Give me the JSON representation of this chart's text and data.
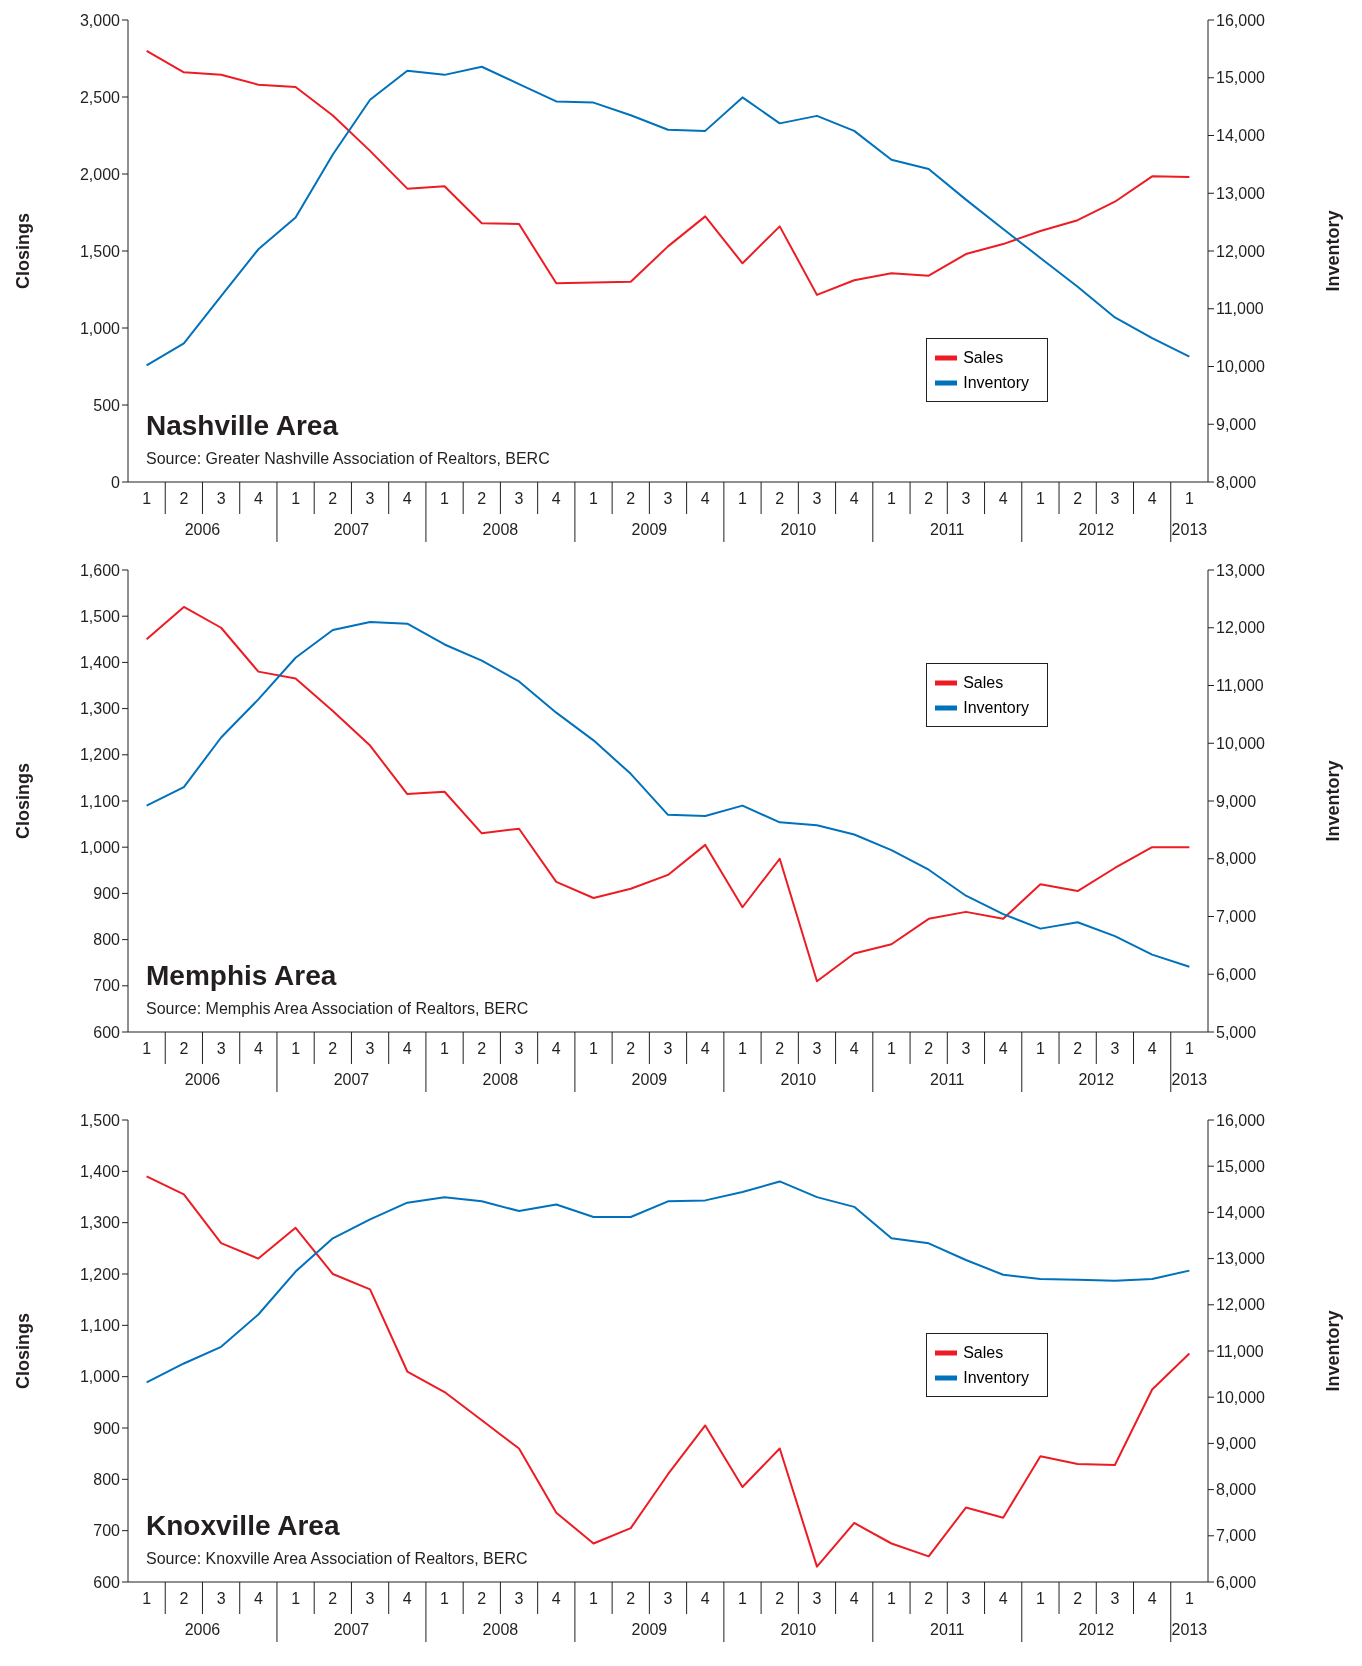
{
  "chart_data": [
    {
      "type": "line",
      "title": "Nashville Area",
      "ylabel": "Closings",
      "y2label": "Inventory",
      "legend": "bottom right",
      "annotations": [
        "Source: Greater Nashville Association of Realtors, BERC",
        "2006",
        "2007",
        "2008",
        "2009",
        "2010",
        "2011",
        "2012",
        "2013"
      ],
      "categories": [
        "1",
        "2",
        "3",
        "4",
        "1",
        "2",
        "3",
        "4",
        "1",
        "2",
        "3",
        "4",
        "1",
        "2",
        "3",
        "4",
        "1",
        "2",
        "3",
        "4",
        "1",
        "2",
        "3",
        "4",
        "1",
        "2",
        "3",
        "4",
        "1"
      ],
      "series": [
        {
          "name": "Sales",
          "color": "#ed1c24",
          "values": [
            2800,
            2660,
            2645,
            2580,
            2565,
            2380,
            2150,
            1905,
            1920,
            1680,
            1675,
            1290,
            1295,
            1300,
            1530,
            1725,
            1420,
            1660,
            1215,
            1310,
            1355,
            1340,
            1480,
            1545,
            1630,
            1700,
            1820,
            1985,
            1980
          ]
        },
        {
          "name": "Inventory",
          "color": "#0072bc",
          "axis": "y2",
          "values": [
            10020,
            10400,
            11220,
            12030,
            12580,
            13670,
            14620,
            15120,
            15050,
            15190,
            14890,
            14590,
            14570,
            14350,
            14100,
            14080,
            14660,
            14210,
            14340,
            14080,
            13580,
            13420,
            12890,
            12380,
            11880,
            11380,
            10850,
            10490,
            10170
          ]
        }
      ],
      "ylim": [
        0,
        3000
      ],
      "yticks": [
        0,
        500,
        {
          "value": 1000,
          "label": "1,000"
        },
        {
          "value": 1500,
          "label": "1,500"
        },
        {
          "value": 2000,
          "label": "2,000"
        },
        {
          "value": 2500,
          "label": "2,500"
        },
        {
          "value": 3000,
          "label": "3,000"
        }
      ],
      "y2lim": [
        8000,
        16000
      ],
      "y2ticks": [
        {
          "value": 8000,
          "label": "8,000"
        },
        {
          "value": 9000,
          "label": "9,000"
        },
        {
          "value": 10000,
          "label": "10,000"
        },
        {
          "value": 11000,
          "label": "11,000"
        },
        {
          "value": 12000,
          "label": "12,000"
        },
        {
          "value": 13000,
          "label": "13,000"
        },
        {
          "value": 14000,
          "label": "14,000"
        },
        {
          "value": 15000,
          "label": "15,000"
        },
        {
          "value": 16000,
          "label": "16,000"
        }
      ]
    },
    {
      "type": "line",
      "title": "Memphis Area",
      "ylabel": "Closings",
      "y2label": "Inventory",
      "legend": "top right",
      "annotations": [
        "Source: Memphis Area Association of Realtors, BERC",
        "2006",
        "2007",
        "2008",
        "2009",
        "2010",
        "2011",
        "2012",
        "2013"
      ],
      "categories": [
        "1",
        "2",
        "3",
        "4",
        "1",
        "2",
        "3",
        "4",
        "1",
        "2",
        "3",
        "4",
        "1",
        "2",
        "3",
        "4",
        "1",
        "2",
        "3",
        "4",
        "1",
        "2",
        "3",
        "4",
        "1",
        "2",
        "3",
        "4",
        "1"
      ],
      "series": [
        {
          "name": "Sales",
          "color": "#ed1c24",
          "values": [
            1450,
            1520,
            1475,
            1380,
            1365,
            1295,
            1220,
            1115,
            1120,
            1030,
            1040,
            925,
            890,
            910,
            940,
            1005,
            870,
            975,
            710,
            770,
            790,
            845,
            860,
            845,
            920,
            905,
            955,
            1000,
            1000
          ]
        },
        {
          "name": "Inventory",
          "color": "#0072bc",
          "axis": "y2",
          "values": [
            8920,
            9240,
            10100,
            10760,
            11480,
            11960,
            12100,
            12070,
            11710,
            11430,
            11070,
            10530,
            10050,
            9470,
            8760,
            8740,
            8920,
            8630,
            8580,
            8420,
            8150,
            7810,
            7360,
            7040,
            6790,
            6900,
            6660,
            6340,
            6130
          ]
        }
      ],
      "ylim": [
        600,
        1600
      ],
      "yticks": [
        600,
        700,
        800,
        900,
        {
          "value": 1000,
          "label": "1,000"
        },
        {
          "value": 1100,
          "label": "1,100"
        },
        {
          "value": 1200,
          "label": "1,200"
        },
        {
          "value": 1300,
          "label": "1,300"
        },
        {
          "value": 1400,
          "label": "1,400"
        },
        {
          "value": 1500,
          "label": "1,500"
        },
        {
          "value": 1600,
          "label": "1,600"
        }
      ],
      "y2lim": [
        5000,
        13000
      ],
      "y2ticks": [
        {
          "value": 5000,
          "label": "5,000"
        },
        {
          "value": 6000,
          "label": "6,000"
        },
        {
          "value": 7000,
          "label": "7,000"
        },
        {
          "value": 8000,
          "label": "8,000"
        },
        {
          "value": 9000,
          "label": "9,000"
        },
        {
          "value": 10000,
          "label": "10,000"
        },
        {
          "value": 11000,
          "label": "11,000"
        },
        {
          "value": 12000,
          "label": "12,000"
        },
        {
          "value": 13000,
          "label": "13,000"
        }
      ]
    },
    {
      "type": "line",
      "title": "Knoxville Area",
      "ylabel": "Closings",
      "y2label": "Inventory",
      "legend": "right",
      "annotations": [
        "Source: Knoxville Area Association of Realtors, BERC",
        "2006",
        "2007",
        "2008",
        "2009",
        "2010",
        "2011",
        "2012",
        "2013"
      ],
      "categories": [
        "1",
        "2",
        "3",
        "4",
        "1",
        "2",
        "3",
        "4",
        "1",
        "2",
        "3",
        "4",
        "1",
        "2",
        "3",
        "4",
        "1",
        "2",
        "3",
        "4",
        "1",
        "2",
        "3",
        "4",
        "1",
        "2",
        "3",
        "4",
        "1"
      ],
      "series": [
        {
          "name": "Sales",
          "color": "#ed1c24",
          "values": [
            1390,
            1355,
            1260,
            1230,
            1290,
            1200,
            1170,
            1010,
            970,
            915,
            860,
            735,
            675,
            705,
            810,
            905,
            785,
            860,
            630,
            715,
            675,
            650,
            745,
            725,
            845,
            830,
            828,
            975,
            1045
          ]
        },
        {
          "name": "Inventory",
          "color": "#0072bc",
          "axis": "y2",
          "values": [
            10320,
            10730,
            11090,
            11790,
            12720,
            13440,
            13850,
            14210,
            14330,
            14240,
            14030,
            14170,
            13900,
            13900,
            14240,
            14260,
            14440,
            14670,
            14330,
            14120,
            13440,
            13330,
            12970,
            12650,
            12560,
            12540,
            12520,
            12560,
            12740
          ]
        }
      ],
      "ylim": [
        600,
        1500
      ],
      "yticks": [
        600,
        700,
        800,
        900,
        {
          "value": 1000,
          "label": "1,000"
        },
        {
          "value": 1100,
          "label": "1,100"
        },
        {
          "value": 1200,
          "label": "1,200"
        },
        {
          "value": 1300,
          "label": "1,300"
        },
        {
          "value": 1400,
          "label": "1,400"
        },
        {
          "value": 1500,
          "label": "1,500"
        }
      ],
      "y2lim": [
        6000,
        16000
      ],
      "y2ticks": [
        {
          "value": 6000,
          "label": "6,000"
        },
        {
          "value": 7000,
          "label": "7,000"
        },
        {
          "value": 8000,
          "label": "8,000"
        },
        {
          "value": 9000,
          "label": "9,000"
        },
        {
          "value": 10000,
          "label": "10,000"
        },
        {
          "value": 11000,
          "label": "11,000"
        },
        {
          "value": 12000,
          "label": "12,000"
        },
        {
          "value": 13000,
          "label": "13,000"
        },
        {
          "value": 14000,
          "label": "14,000"
        },
        {
          "value": 15000,
          "label": "15,000"
        },
        {
          "value": 16000,
          "label": "16,000"
        }
      ]
    }
  ]
}
